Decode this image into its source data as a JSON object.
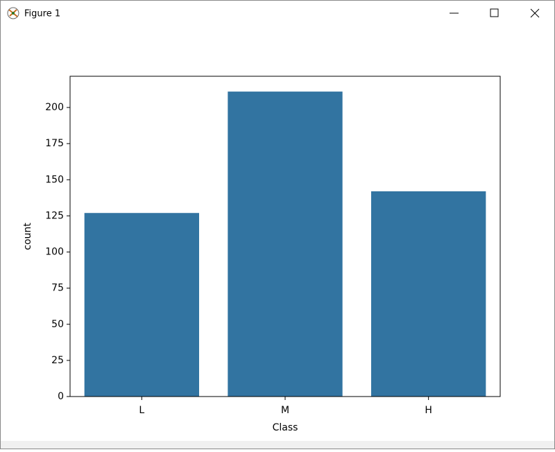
{
  "window": {
    "title": "Figure 1"
  },
  "chart_data": {
    "type": "bar",
    "categories": [
      "L",
      "M",
      "H"
    ],
    "values": [
      127,
      211,
      142
    ],
    "color": "#3274a1",
    "xlabel": "Class",
    "ylabel": "count",
    "ylim": [
      0,
      221.6
    ],
    "yticks": [
      0,
      25,
      50,
      75,
      100,
      125,
      150,
      175,
      200
    ]
  }
}
